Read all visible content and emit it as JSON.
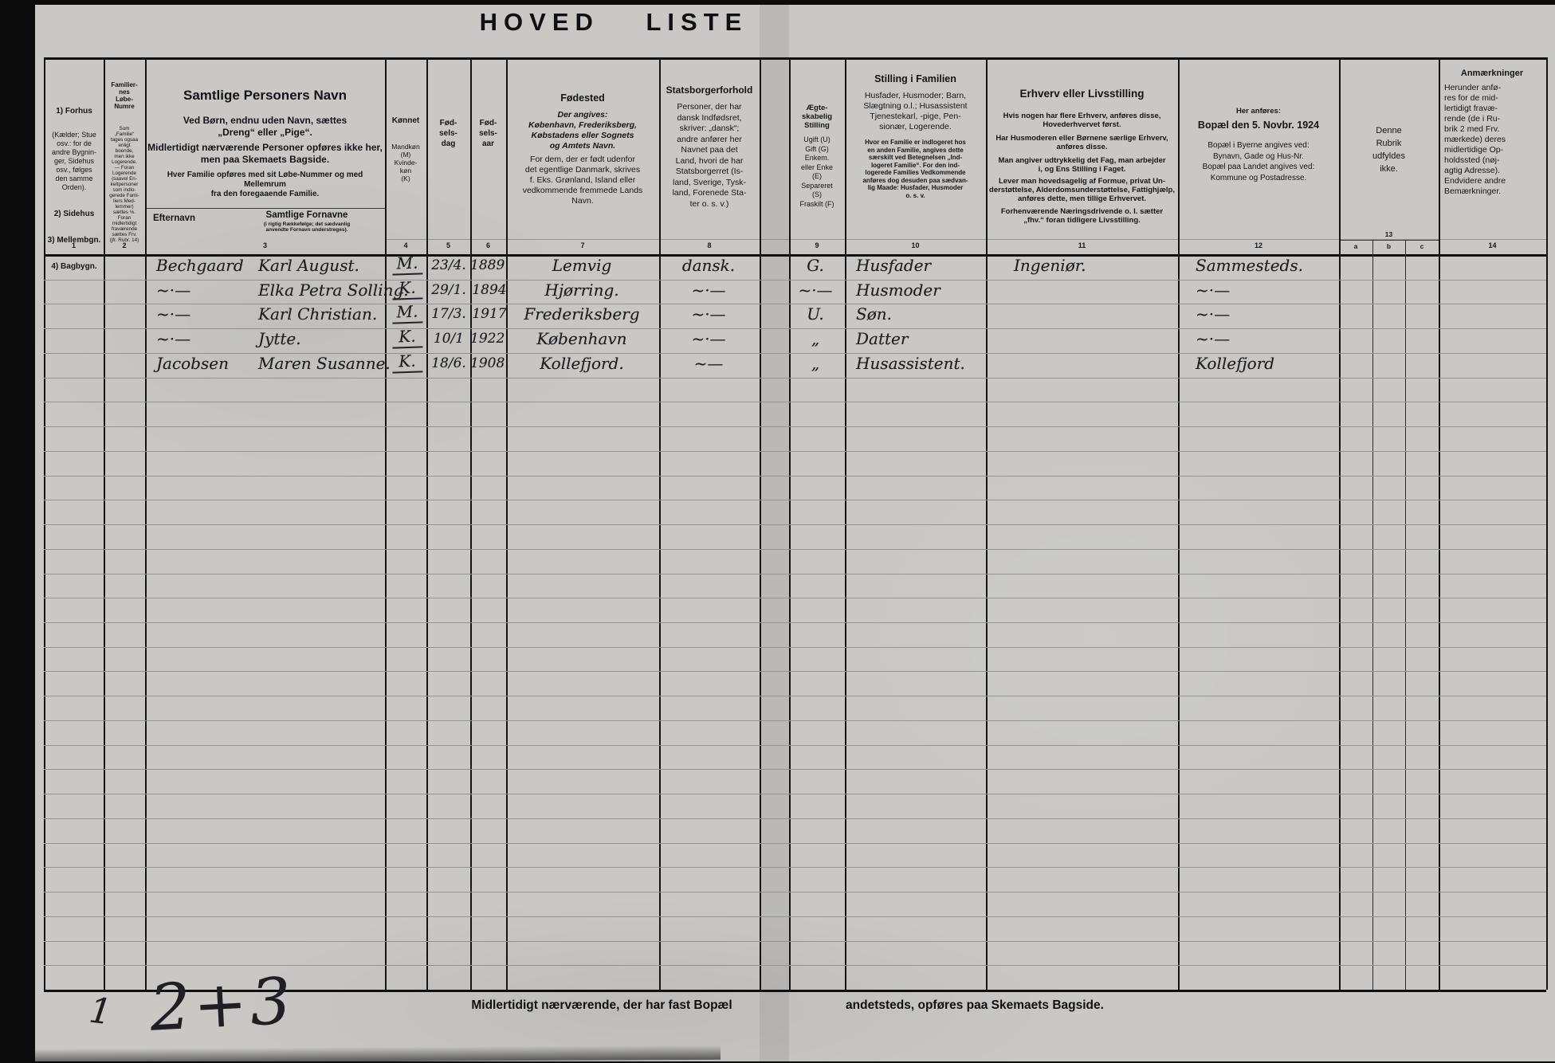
{
  "title": "HOVED LISTE",
  "colors": {
    "paper": "#c9c8c4",
    "ink_print": "#141418",
    "ink_hand": "#1e1e24",
    "row_line": "#94938f",
    "grid_line": "#151515",
    "scan_edge": "#0c0c0c"
  },
  "header": {
    "col1": {
      "item1_title": "1) Forhus",
      "item1_body": "(Kælder; Stue\nosv.: for de\nandre Bygnin-\nger, Sidehus\nosv., følges\nden samme\nOrden).",
      "item2": "2) Sidehus",
      "item3": "3) Mellembgn.",
      "item4": "4) Bagbygn."
    },
    "col2": {
      "title": "Familier-\nnes\nLøbe-\nNumre",
      "body": "Som\n„Familie“\ntages ogsaa\nenligt\nboende,\nmen ikke\nLogerende.\n— Foran\nLogerende\n(saavel En-\nkeltpersoner\nsom indlo-\ngerede Fami-\nliers Med-\nlemmer)\nsættes ℅.\nForan\nmidlertidigt\nfraværende\nsættes Frv.\n(jfr. Rubr. 14)"
    },
    "col3": {
      "title": "Samtlige Personers Navn",
      "line1": "Ved Børn, endnu uden Navn, sættes\n„Dreng“ eller „Pige“.",
      "line2": "Midlertidigt nærværende Personer opføres ikke her,\nmen paa Skemaets Bagside.",
      "line3": "Hver Familie opføres med sit Løbe-Nummer og med Mellemrum\nfra den foregaaende Familie.",
      "sub_left": "Efternavn",
      "sub_right_title": "Samtlige Fornavne",
      "sub_right_note": "(i rigtig Rækkefølge; det sædvanlig\nanvendte Fornavn understreges)."
    },
    "col4": {
      "title": "Kønnet",
      "body": "Mandkøn\n(M)\nKvinde-\nkøn\n(K)"
    },
    "col5": {
      "title": "Fød-\nsels-\ndag"
    },
    "col6": {
      "title": "Fød-\nsels-\naar"
    },
    "col7": {
      "title": "Fødested",
      "body": "Der angives:\nKøbenhavn, Frederiksberg,\nKøbstadens eller Sognets\nog Amtets Navn.",
      "body2": "For dem, der er født udenfor\ndet egentlige Danmark, skrives\nf. Eks. Grønland, Island eller\nvedkommende fremmede Lands\nNavn."
    },
    "col8": {
      "title": "Statsborgerforhold",
      "body": "Personer, der har\ndansk Indfødsret,\nskriver: „dansk“;\nandre anfører her\nNavnet paa det\nLand, hvori de har\nStatsborgerret (Is-\nland, Sverige, Tysk-\nland, Forenede Sta-\nter o. s. v.)"
    },
    "col9": {
      "title": "Ægte-\nskabelig\nStilling",
      "body": "Ugift (U)\nGift (G)\nEnkem.\neller Enke\n(E)\nSepareret\n(S)\nFraskilt (F)"
    },
    "col10": {
      "title": "Stilling i Familien",
      "body": "Husfader, Husmoder; Barn,\nSlægtning o.l.; Husassistent\nTjenestekarl, -pige, Pen-\nsionær, Logerende.",
      "note": "Hvor en Familie er indlogeret hos\nen anden Familie, angives dette\nsærskilt ved Betegnelsen „Ind-\nlogeret Familie“. For den ind-\nlogerede Families Vedkommende\nanføres dog desuden paa sædvan-\nlig Maade: Husfader, Husmoder\no. s. v."
    },
    "col11": {
      "title": "Erhverv eller Livsstilling",
      "p1": "Hvis nogen har flere Erhverv, anføres disse,\nHovederhvervet først.",
      "p2": "Har Husmoderen eller Børnene særlige Erhverv,\nanføres disse.",
      "p3": "Man angiver udtrykkelig det Fag, man arbejder\ni, og Ens Stilling i Faget.",
      "p4": "Lever man hovedsagelig af Formue, privat Un-\nderstøttelse, Alderdomsunderstøttelse, Fattighjælp,\nanføres dette, men tillige Erhvervet.",
      "p5": "Forhenværende Næringsdrivende o. l. sætter\n„fhv.“ foran tidligere Livsstilling."
    },
    "col12": {
      "pre": "Her anføres:",
      "title": "Bopæl den 5. Novbr. 1924",
      "body": "Bopæl i Byerne angives ved:\nBynavn, Gade og Hus-Nr.\nBopæl paa Landet angives ved:\nKommune og Postadresse."
    },
    "col13": {
      "body": "Denne\nRubrik\nudfyldes\nikke."
    },
    "col14": {
      "title": "Anmærkninger",
      "body": "Herunder anfø-\nres for de mid-\nlertidigt fravæ-\nrende (de i Ru-\nbrik 2 med Frv.\nmærkede) deres\nmidlertidige Op-\nholdssted (nøj-\nagtig Adresse).\nEndvidere andre\nBemærkninger."
    }
  },
  "numbers": {
    "c1": "1",
    "c2": "2",
    "c3": "3",
    "c4": "4",
    "c5": "5",
    "c6": "6",
    "c7": "7",
    "c8": "8",
    "c9": "9",
    "c10": "10",
    "c11": "11",
    "c12": "12",
    "c13": "13",
    "c13a": "a",
    "c13b": "b",
    "c13c": "c",
    "c14": "14"
  },
  "records": [
    {
      "surname": "Bechgaard",
      "firstnames": "Karl August.",
      "sex": "M.",
      "birthday": "23/4.",
      "birthyear": "1889.",
      "birthplace": "Lemvig",
      "citizenship": "dansk.",
      "marital": "G.",
      "family_position": "Husfader",
      "occupation": "Ingeniør.",
      "residence": "Sammesteds."
    },
    {
      "surname": "~·—",
      "firstnames": "Elka Petra Solling.",
      "sex": "K.",
      "birthday": "29/1.",
      "birthyear": "1894",
      "birthplace": "Hjørring.",
      "citizenship": "~·—",
      "marital": "~·—",
      "family_position": "Husmoder",
      "occupation": "",
      "residence": "~·—"
    },
    {
      "surname": "~·—",
      "firstnames": "Karl Christian.",
      "sex": "M.",
      "birthday": "17/3.",
      "birthyear": "1917",
      "birthplace": "Frederiksberg",
      "citizenship": "~·—",
      "marital": "U.",
      "family_position": "Søn.",
      "occupation": "",
      "residence": "~·—"
    },
    {
      "surname": "~·—",
      "firstnames": "Jytte.",
      "sex": "K.",
      "birthday": "10/1",
      "birthyear": "1922.",
      "birthplace": "København",
      "citizenship": "~·—",
      "marital": "„",
      "family_position": "Datter",
      "occupation": "",
      "residence": "~·—"
    },
    {
      "surname": "Jacobsen",
      "firstnames": "Maren Susanne.",
      "sex": "K.",
      "birthday": "18/6.",
      "birthyear": "1908.",
      "birthplace": "Kollefjord.",
      "citizenship": "~—",
      "marital": "„",
      "family_position": "Husassistent.",
      "occupation": "",
      "residence": "Kollefjord"
    }
  ],
  "footer": {
    "left": "Midlertidigt nærværende, der har fast Bopæl",
    "right": "andetsteds, opføres paa Skemaets Bagside."
  },
  "annotations": {
    "tally_small": "1",
    "tally_large": "2+3"
  }
}
